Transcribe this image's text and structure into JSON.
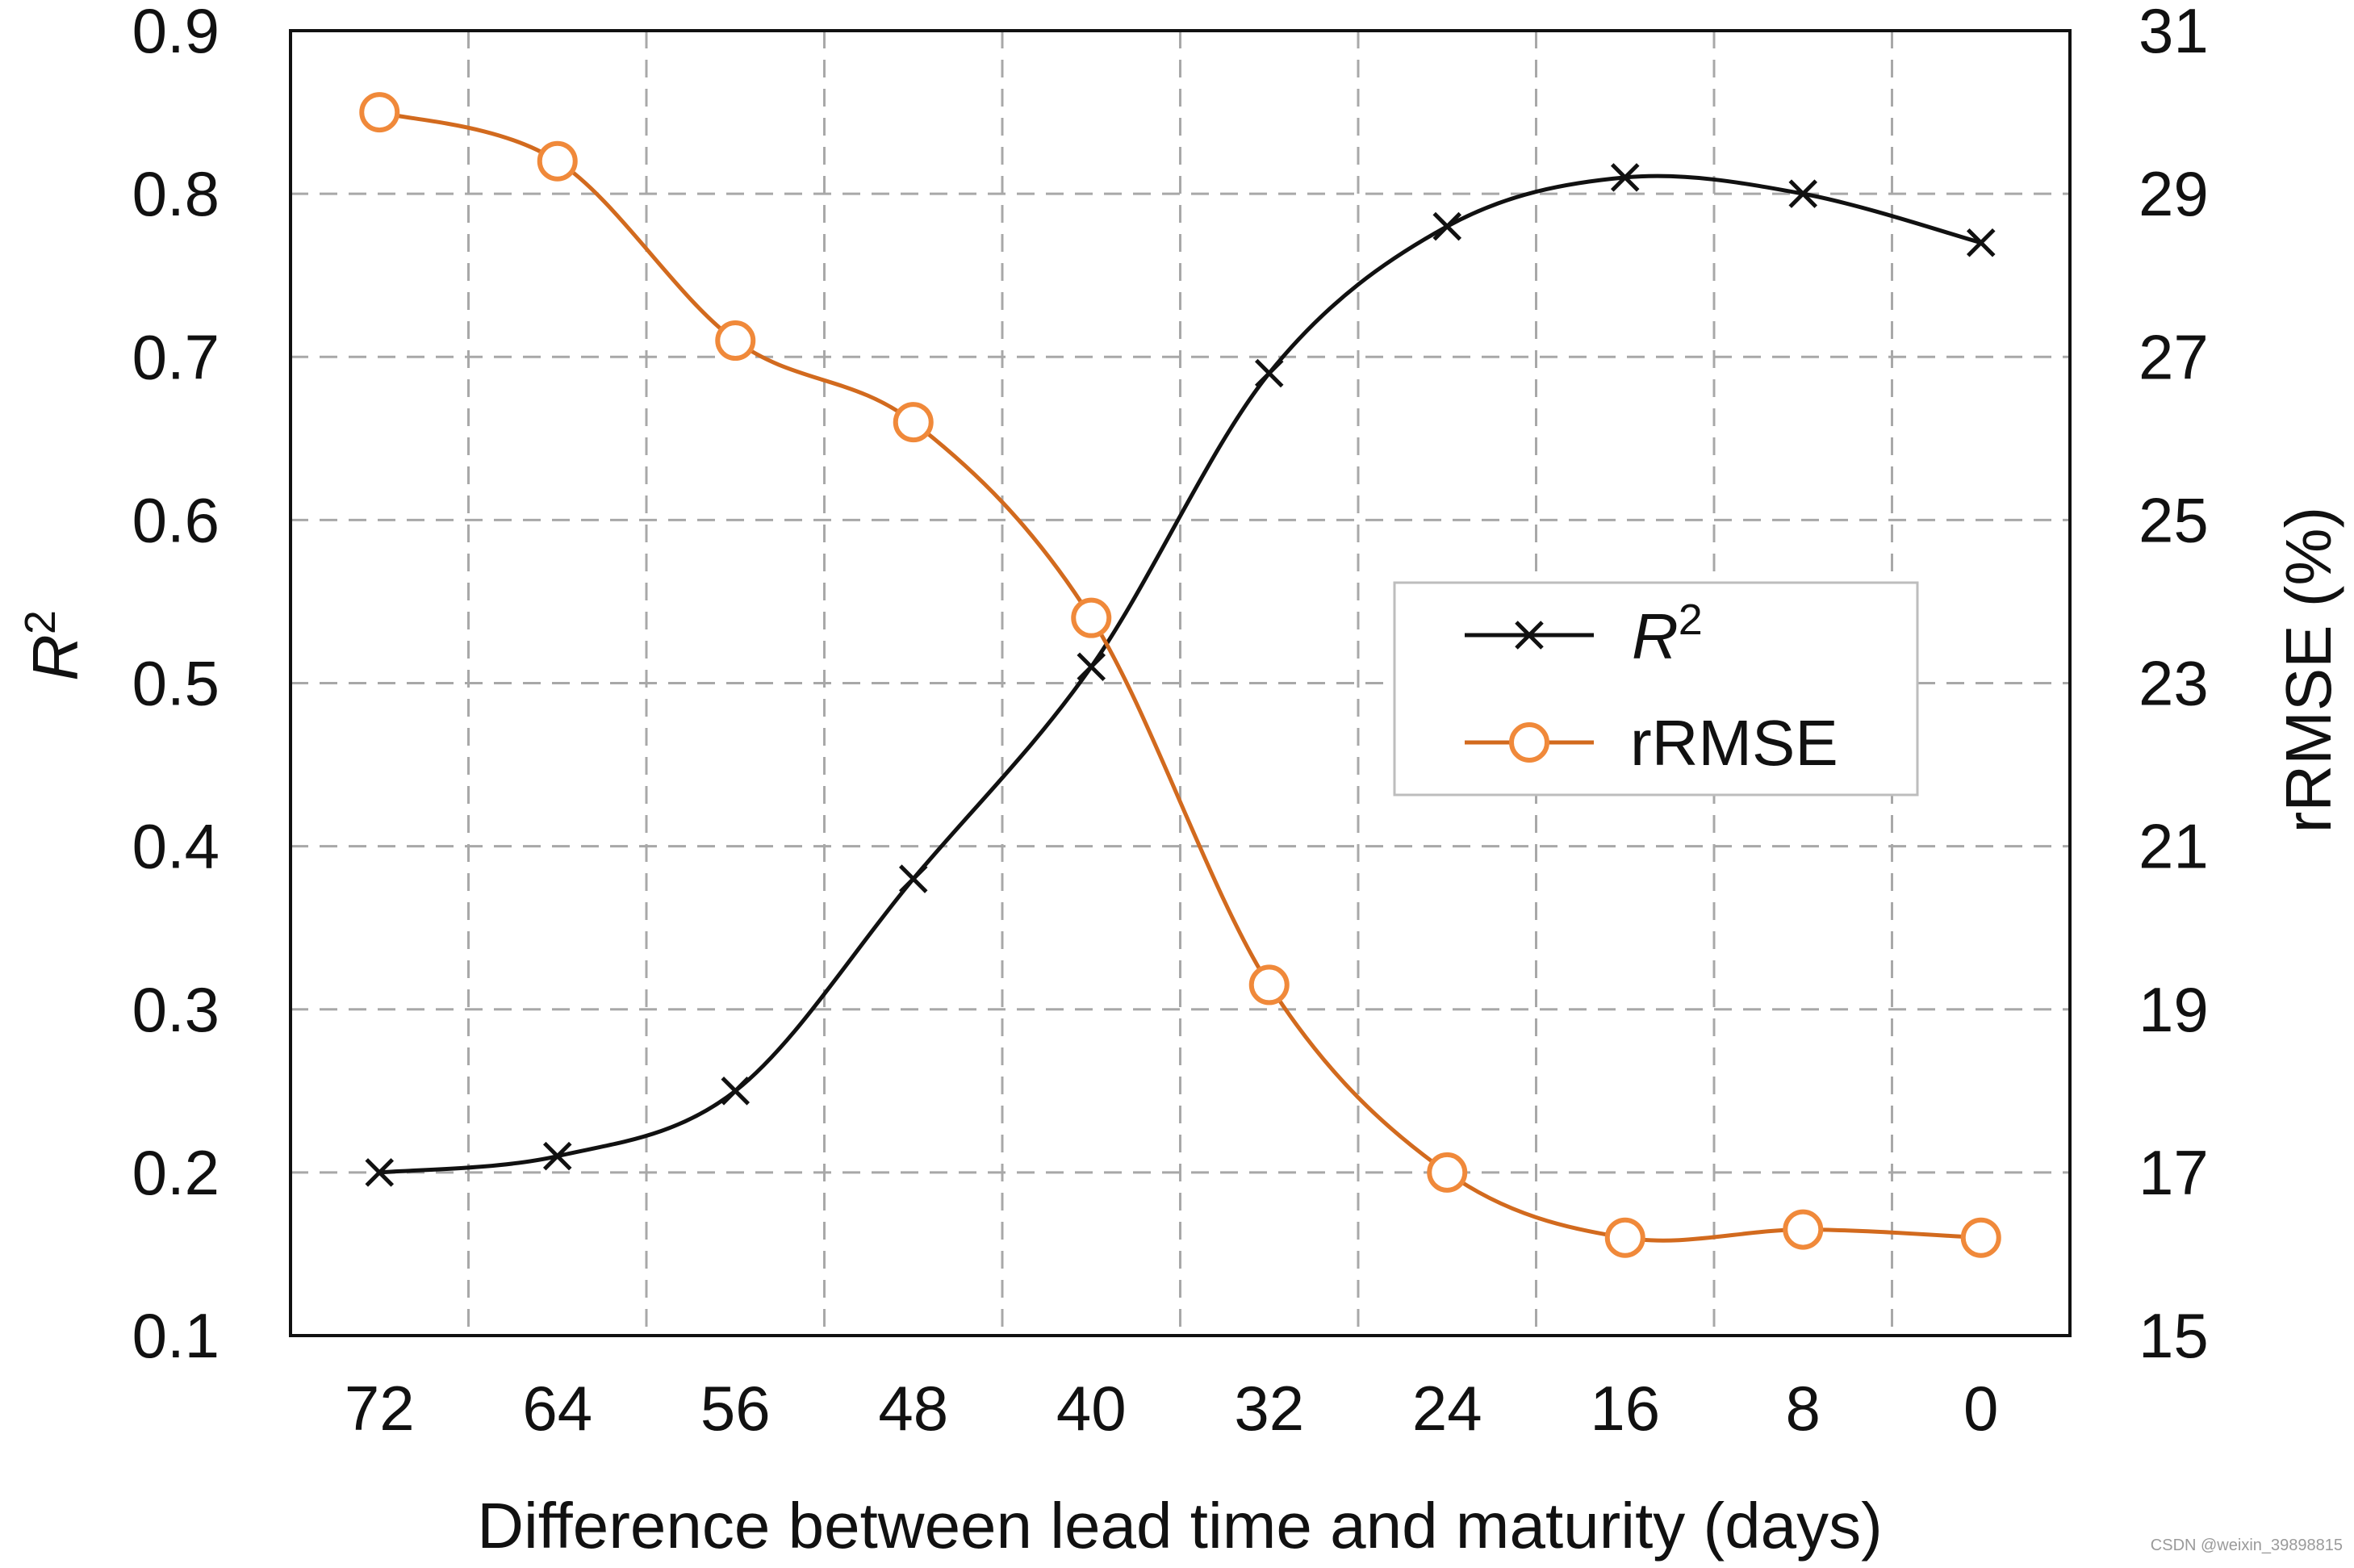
{
  "chart_data": {
    "type": "line",
    "xlabel": "Difference between lead time and maturity (days)",
    "ylabel_left": "R",
    "ylabel_left_superscript": "2",
    "ylabel_right": "rRMSE (%)",
    "categories": [
      "72",
      "64",
      "56",
      "48",
      "40",
      "32",
      "24",
      "16",
      "8",
      "0"
    ],
    "ylim_left": [
      0.1,
      0.9
    ],
    "yticks_left": [
      "0.1",
      "0.2",
      "0.3",
      "0.4",
      "0.5",
      "0.6",
      "0.7",
      "0.8",
      "0.9"
    ],
    "ylim_right": [
      15,
      31
    ],
    "yticks_right": [
      "15",
      "17",
      "19",
      "21",
      "23",
      "25",
      "27",
      "29",
      "31"
    ],
    "grid": true,
    "legend_position": "center-right",
    "series": [
      {
        "name": "R",
        "name_superscript": "2",
        "axis": "left",
        "marker": "x",
        "color": "#111111",
        "values": [
          0.2,
          0.21,
          0.25,
          0.38,
          0.51,
          0.69,
          0.78,
          0.81,
          0.8,
          0.77
        ]
      },
      {
        "name": "rRMSE",
        "axis": "right",
        "marker": "circle",
        "color": "#d26a1e",
        "marker_color": "#f0893a",
        "values": [
          30.0,
          29.4,
          27.2,
          26.2,
          23.8,
          19.3,
          17.0,
          16.2,
          16.3,
          16.2
        ]
      }
    ]
  },
  "watermark": "CSDN @weixin_39898815"
}
